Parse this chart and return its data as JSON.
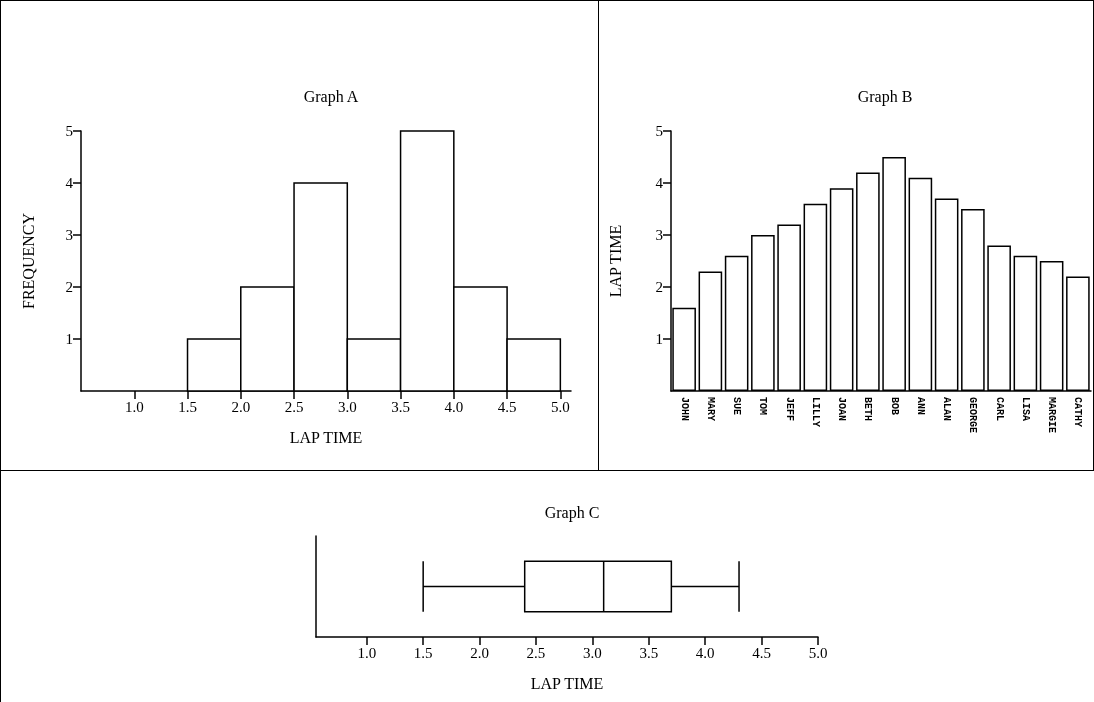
{
  "chart_data": [
    {
      "type": "histogram",
      "title": "Graph A",
      "xlabel": "LAP TIME",
      "ylabel": "FREQUENCY",
      "bins": [
        1.5,
        2.0,
        2.5,
        3.0,
        3.5,
        4.0,
        4.5,
        5.0
      ],
      "values": [
        1,
        2,
        4,
        1,
        5,
        2,
        1
      ],
      "color": "#ffffff",
      "xlim": [
        0.5,
        5.1
      ],
      "xticks": [
        {
          "value": 1,
          "label": "1.0"
        },
        1.5,
        {
          "value": 2,
          "label": "2.0"
        },
        2.5,
        {
          "value": 3,
          "label": "3.0"
        },
        3.5,
        {
          "value": 4,
          "label": "4.0"
        },
        4.5,
        {
          "value": 5,
          "label": "5.0"
        }
      ],
      "ylim": [
        0,
        5
      ],
      "yticks": [
        1,
        2,
        3,
        4,
        5
      ],
      "grid": false
    },
    {
      "type": "bar",
      "title": "Graph B",
      "ylabel": "LAP TIME",
      "categories": [
        "JOHN",
        "MARY",
        "SUE",
        "TOM",
        "JEFF",
        "LILLY",
        "JOAN",
        "BETH",
        "BOB",
        "ANN",
        "ALAN",
        "GEORGE",
        "CARL",
        "LISA",
        "MARGIE",
        "CATHY"
      ],
      "values": [
        1.6,
        2.3,
        2.6,
        3.0,
        3.2,
        3.6,
        3.9,
        4.2,
        4.5,
        4.1,
        3.7,
        3.5,
        2.8,
        2.6,
        2.5,
        2.2
      ],
      "color": "#ffffff",
      "ylim": [
        0,
        5
      ],
      "yticks": [
        1,
        2,
        3,
        4,
        5
      ],
      "grid": false
    },
    {
      "type": "box",
      "title": "Graph C",
      "xlabel": "LAP TIME",
      "orientation": "horizontal",
      "categories": [
        null
      ],
      "boxes": [
        {
          "low": 1.5,
          "q1": 2.4,
          "median": 3.1,
          "q3": 3.7,
          "high": 4.3
        }
      ],
      "color": "#ffffff",
      "xlim": [
        0.55,
        5.0
      ],
      "xticks": [
        {
          "value": 1,
          "label": "1.0"
        },
        1.5,
        {
          "value": 2,
          "label": "2.0"
        },
        2.5,
        {
          "value": 3,
          "label": "3.0"
        },
        3.5,
        {
          "value": 4,
          "label": "4.0"
        },
        4.5,
        {
          "value": 5,
          "label": "5.0"
        }
      ],
      "tick_labels": "x",
      "grid": false
    }
  ]
}
